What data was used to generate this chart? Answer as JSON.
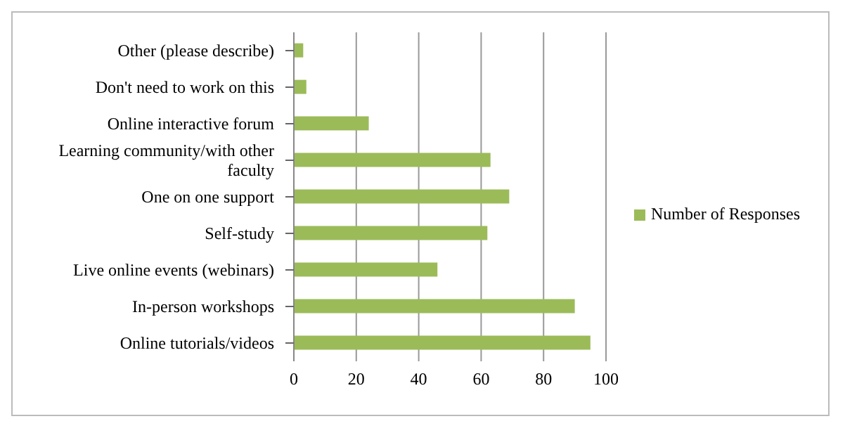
{
  "chart_data": {
    "type": "bar",
    "orientation": "horizontal",
    "categories": [
      "Other (please describe)",
      "Don't need to work on this",
      "Online interactive forum",
      "Learning community/with other faculty",
      "One on one support",
      "Self-study",
      "Live online events (webinars)",
      "In-person workshops",
      "Online tutorials/videos"
    ],
    "series": [
      {
        "name": "Number of Responses",
        "color": "#9bbb59",
        "values": [
          3,
          4,
          24,
          63,
          69,
          62,
          46,
          90,
          95
        ]
      }
    ],
    "xlim": [
      0,
      100
    ],
    "xticks": [
      0,
      20,
      40,
      60,
      80,
      100
    ],
    "grid": "x",
    "legend": "right"
  }
}
